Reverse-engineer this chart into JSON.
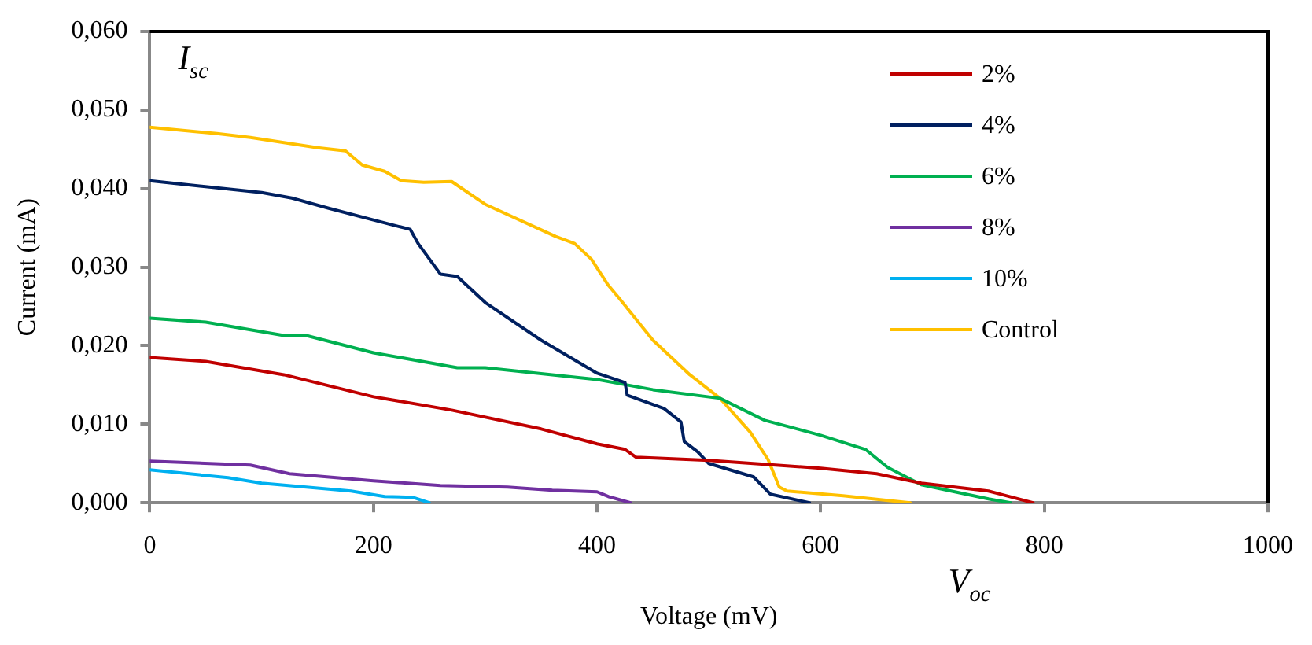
{
  "chart_data": {
    "type": "line",
    "xlabel": "Voltage (mV)",
    "ylabel": "Current (mA)",
    "annotations": [
      "I$_{sc}$",
      "V$_{oc}$"
    ],
    "xlim": [
      0,
      1000
    ],
    "xticks": [
      0,
      200,
      400,
      600,
      800,
      1000
    ],
    "ylim": [
      0,
      0.06
    ],
    "yticks": [
      {
        "value": 0,
        "label": "0,000"
      },
      {
        "value": 0.01,
        "label": "0,010"
      },
      {
        "value": 0.02,
        "label": "0,020"
      },
      {
        "value": 0.03,
        "label": "0,030"
      },
      {
        "value": 0.04,
        "label": "0,040"
      },
      {
        "value": 0.05,
        "label": "0,050"
      },
      {
        "value": 0.06,
        "label": "0,060"
      }
    ],
    "grid": false,
    "legend": "top right",
    "marker": "none",
    "line_style": "solid",
    "series": [
      {
        "name": "2%",
        "color": "#c00000",
        "x": [
          0,
          50,
          120,
          200,
          270,
          350,
          400,
          425,
          435,
          500,
          600,
          650,
          690,
          750,
          790
        ],
        "values": [
          0.0185,
          0.018,
          0.0163,
          0.0135,
          0.0118,
          0.0094,
          0.0075,
          0.0068,
          0.0058,
          0.0054,
          0.0044,
          0.0037,
          0.0025,
          0.0015,
          0
        ]
      },
      {
        "name": "4%",
        "color": "#002060",
        "x": [
          0,
          100,
          127,
          160,
          200,
          233,
          240,
          260,
          275,
          300,
          350,
          400,
          425,
          427,
          460,
          475,
          478,
          490,
          500,
          540,
          555,
          590
        ],
        "values": [
          0.041,
          0.0395,
          0.0388,
          0.0375,
          0.036,
          0.0348,
          0.033,
          0.0291,
          0.0288,
          0.0255,
          0.0207,
          0.0165,
          0.0153,
          0.0137,
          0.012,
          0.0103,
          0.0078,
          0.0065,
          0.005,
          0.0033,
          0.0011,
          0
        ]
      },
      {
        "name": "6%",
        "color": "#00b050",
        "x": [
          0,
          50,
          120,
          140,
          200,
          275,
          300,
          400,
          450,
          510,
          550,
          600,
          640,
          660,
          690,
          750,
          770
        ],
        "values": [
          0.0235,
          0.023,
          0.0213,
          0.0213,
          0.0191,
          0.0172,
          0.0172,
          0.0157,
          0.0144,
          0.0133,
          0.0105,
          0.0086,
          0.0068,
          0.0045,
          0.0023,
          0.0005,
          0
        ]
      },
      {
        "name": "8%",
        "color": "#7030a0",
        "x": [
          0,
          90,
          125,
          200,
          260,
          320,
          360,
          400,
          410,
          430
        ],
        "values": [
          0.0053,
          0.0048,
          0.0037,
          0.0028,
          0.0022,
          0.002,
          0.0016,
          0.0014,
          0.0008,
          0
        ]
      },
      {
        "name": "10%",
        "color": "#00b0f0",
        "x": [
          0,
          70,
          100,
          180,
          210,
          235,
          250
        ],
        "values": [
          0.0042,
          0.0032,
          0.0025,
          0.0015,
          0.0008,
          0.0007,
          0
        ]
      },
      {
        "name": "Control",
        "color": "#ffc000",
        "x": [
          0,
          60,
          90,
          150,
          175,
          190,
          210,
          225,
          245,
          270,
          300,
          363,
          380,
          395,
          410,
          420,
          450,
          483,
          510,
          537,
          553,
          563,
          570,
          620,
          680
        ],
        "values": [
          0.0478,
          0.047,
          0.0465,
          0.0452,
          0.0448,
          0.043,
          0.0422,
          0.041,
          0.0408,
          0.0409,
          0.038,
          0.0339,
          0.033,
          0.031,
          0.0277,
          0.026,
          0.0207,
          0.0163,
          0.0133,
          0.009,
          0.0055,
          0.002,
          0.0015,
          0.0009,
          0
        ]
      }
    ]
  }
}
